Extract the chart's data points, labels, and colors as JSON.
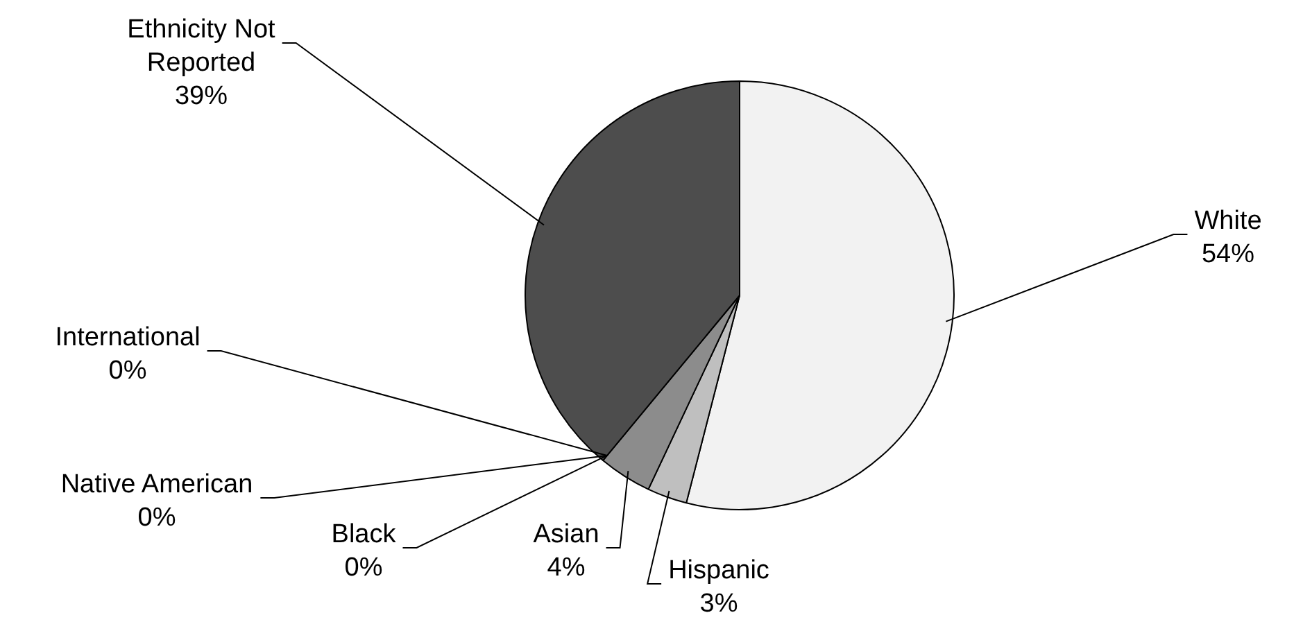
{
  "chart_data": {
    "type": "pie",
    "categories": [
      "White",
      "Hispanic",
      "Asian",
      "Black",
      "Native American",
      "International",
      "Ethnicity Not Reported"
    ],
    "values": [
      54,
      3,
      4,
      0,
      0,
      0,
      39
    ],
    "value_labels": [
      "54%",
      "3%",
      "4%",
      "0%",
      "0%",
      "0%",
      "39%"
    ],
    "colors": [
      "#f2f2f2",
      "#bfbfbf",
      "#8c8c8c",
      "#404040",
      "#262626",
      "#666666",
      "#4d4d4d"
    ],
    "legend": false
  }
}
